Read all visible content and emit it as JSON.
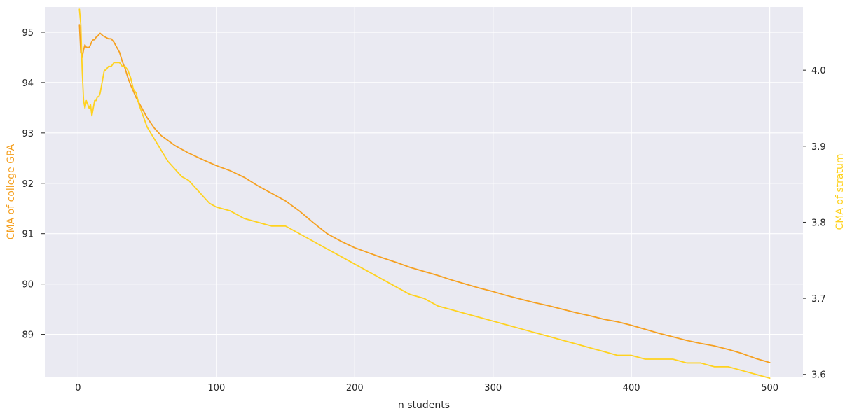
{
  "chart_data": {
    "type": "line",
    "xlabel": "n students",
    "ylabel_left": "CMA of college GPA",
    "ylabel_right": "CMA of stratum",
    "xlim": [
      -24,
      524
    ],
    "ylim_left": [
      88.16,
      95.5
    ],
    "ylim_right": [
      3.597,
      4.083
    ],
    "x_ticks": [
      0,
      100,
      200,
      300,
      400,
      500
    ],
    "y_ticks_left": [
      89,
      90,
      91,
      92,
      93,
      94,
      95
    ],
    "y_ticks_right": [
      3.6,
      3.7,
      3.8,
      3.9,
      4.0
    ],
    "grid": true,
    "colors": {
      "background": "#eaeaf2",
      "grid": "#ffffff",
      "gpa_line": "#f5a020",
      "stratum_line": "#ffd21e",
      "tick_text": "#262626"
    },
    "series": [
      {
        "axis": "left",
        "color": "#f5a020",
        "x": [
          1,
          2,
          3,
          4,
          5,
          6,
          7,
          8,
          9,
          10,
          11,
          12,
          13,
          14,
          16,
          18,
          20,
          22,
          24,
          26,
          28,
          30,
          32,
          34,
          36,
          38,
          40,
          42,
          45,
          48,
          50,
          55,
          60,
          65,
          70,
          80,
          90,
          100,
          110,
          120,
          130,
          140,
          150,
          160,
          170,
          180,
          190,
          200,
          210,
          220,
          230,
          240,
          250,
          260,
          270,
          280,
          290,
          300,
          310,
          320,
          330,
          340,
          350,
          360,
          370,
          380,
          390,
          400,
          410,
          420,
          430,
          440,
          450,
          460,
          470,
          480,
          490,
          500
        ],
        "y": [
          95.15,
          94.6,
          94.5,
          94.65,
          94.75,
          94.7,
          94.7,
          94.7,
          94.75,
          94.82,
          94.85,
          94.85,
          94.9,
          94.92,
          94.98,
          94.93,
          94.9,
          94.87,
          94.87,
          94.8,
          94.7,
          94.6,
          94.42,
          94.28,
          94.1,
          93.95,
          93.83,
          93.7,
          93.55,
          93.4,
          93.3,
          93.1,
          92.95,
          92.85,
          92.75,
          92.6,
          92.47,
          92.35,
          92.25,
          92.12,
          91.95,
          91.8,
          91.65,
          91.45,
          91.22,
          91.0,
          90.85,
          90.72,
          90.62,
          90.52,
          90.43,
          90.33,
          90.25,
          90.17,
          90.08,
          90.0,
          89.92,
          89.85,
          89.77,
          89.7,
          89.63,
          89.57,
          89.5,
          89.43,
          89.37,
          89.3,
          89.25,
          89.18,
          89.1,
          89.02,
          88.95,
          88.88,
          88.82,
          88.77,
          88.7,
          88.62,
          88.52,
          88.44
        ]
      },
      {
        "axis": "right",
        "color": "#ffd21e",
        "x": [
          1,
          2,
          3,
          4,
          5,
          6,
          7,
          8,
          9,
          10,
          11,
          12,
          13,
          14,
          15,
          16,
          17,
          18,
          19,
          20,
          22,
          24,
          26,
          28,
          30,
          32,
          34,
          36,
          38,
          40,
          42,
          44,
          46,
          48,
          50,
          55,
          60,
          65,
          70,
          75,
          80,
          85,
          90,
          95,
          100,
          110,
          120,
          130,
          140,
          150,
          160,
          170,
          180,
          190,
          200,
          210,
          220,
          230,
          240,
          250,
          260,
          270,
          280,
          290,
          300,
          310,
          320,
          330,
          340,
          350,
          360,
          370,
          380,
          390,
          400,
          410,
          420,
          430,
          440,
          450,
          460,
          470,
          480,
          490,
          500
        ],
        "y": [
          4.08,
          4.06,
          4.0,
          3.96,
          3.95,
          3.96,
          3.955,
          3.95,
          3.955,
          3.94,
          3.95,
          3.96,
          3.96,
          3.965,
          3.965,
          3.97,
          3.98,
          3.99,
          4.0,
          4.0,
          4.005,
          4.005,
          4.01,
          4.01,
          4.01,
          4.005,
          4.005,
          4.0,
          3.99,
          3.975,
          3.97,
          3.955,
          3.945,
          3.935,
          3.925,
          3.91,
          3.895,
          3.88,
          3.87,
          3.86,
          3.855,
          3.845,
          3.835,
          3.825,
          3.82,
          3.815,
          3.805,
          3.8,
          3.795,
          3.795,
          3.785,
          3.775,
          3.765,
          3.755,
          3.745,
          3.735,
          3.725,
          3.715,
          3.705,
          3.7,
          3.69,
          3.685,
          3.68,
          3.675,
          3.67,
          3.665,
          3.66,
          3.655,
          3.65,
          3.645,
          3.64,
          3.635,
          3.63,
          3.625,
          3.625,
          3.62,
          3.62,
          3.62,
          3.615,
          3.615,
          3.61,
          3.61,
          3.605,
          3.6,
          3.595
        ]
      }
    ]
  }
}
